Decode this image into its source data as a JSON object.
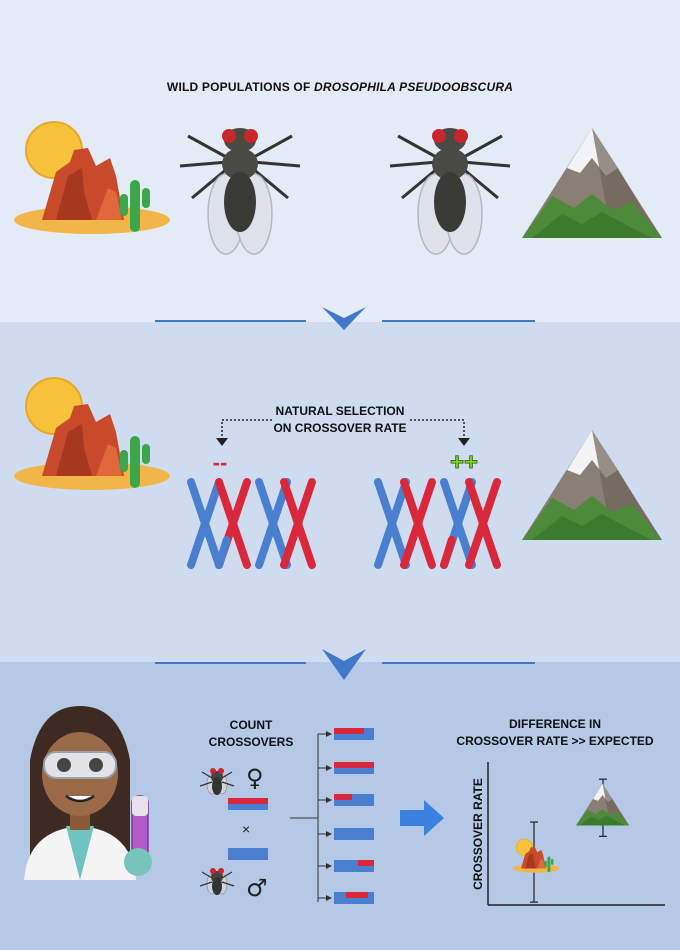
{
  "title": {
    "prefix": "WILD POPULATIONS OF ",
    "species": "DROSOPHILA PSEUDOOBSCURA"
  },
  "selection": {
    "line1": "NATURAL SELECTION",
    "line2": "ON CROSSOVER RATE",
    "minus": "--",
    "plus": "++"
  },
  "experiment": {
    "count_line1": "COUNT",
    "count_line2": "CROSSOVERS",
    "female_symbol": "♀",
    "male_symbol": "♂",
    "cross_symbol": "×",
    "result_line1": "DIFFERENCE IN",
    "result_line2": "CROSSOVER RATE >> EXPECTED",
    "ylabel": "CROSSOVER RATE"
  },
  "colors": {
    "chrom_blue": "#4a7fd0",
    "chrom_red": "#d9283c",
    "arrow_blue": "#3b82e0",
    "divider": "#3f78c9",
    "plus_green": "#7ed321"
  },
  "chart_data": {
    "type": "scatter",
    "xlabel": "",
    "ylabel": "CROSSOVER RATE",
    "series": [
      {
        "values": [
          {
            "x": "desert",
            "y": 0.3,
            "err": 0.28
          },
          {
            "x": "mountain",
            "y": 0.68,
            "err": 0.2
          }
        ]
      }
    ]
  }
}
